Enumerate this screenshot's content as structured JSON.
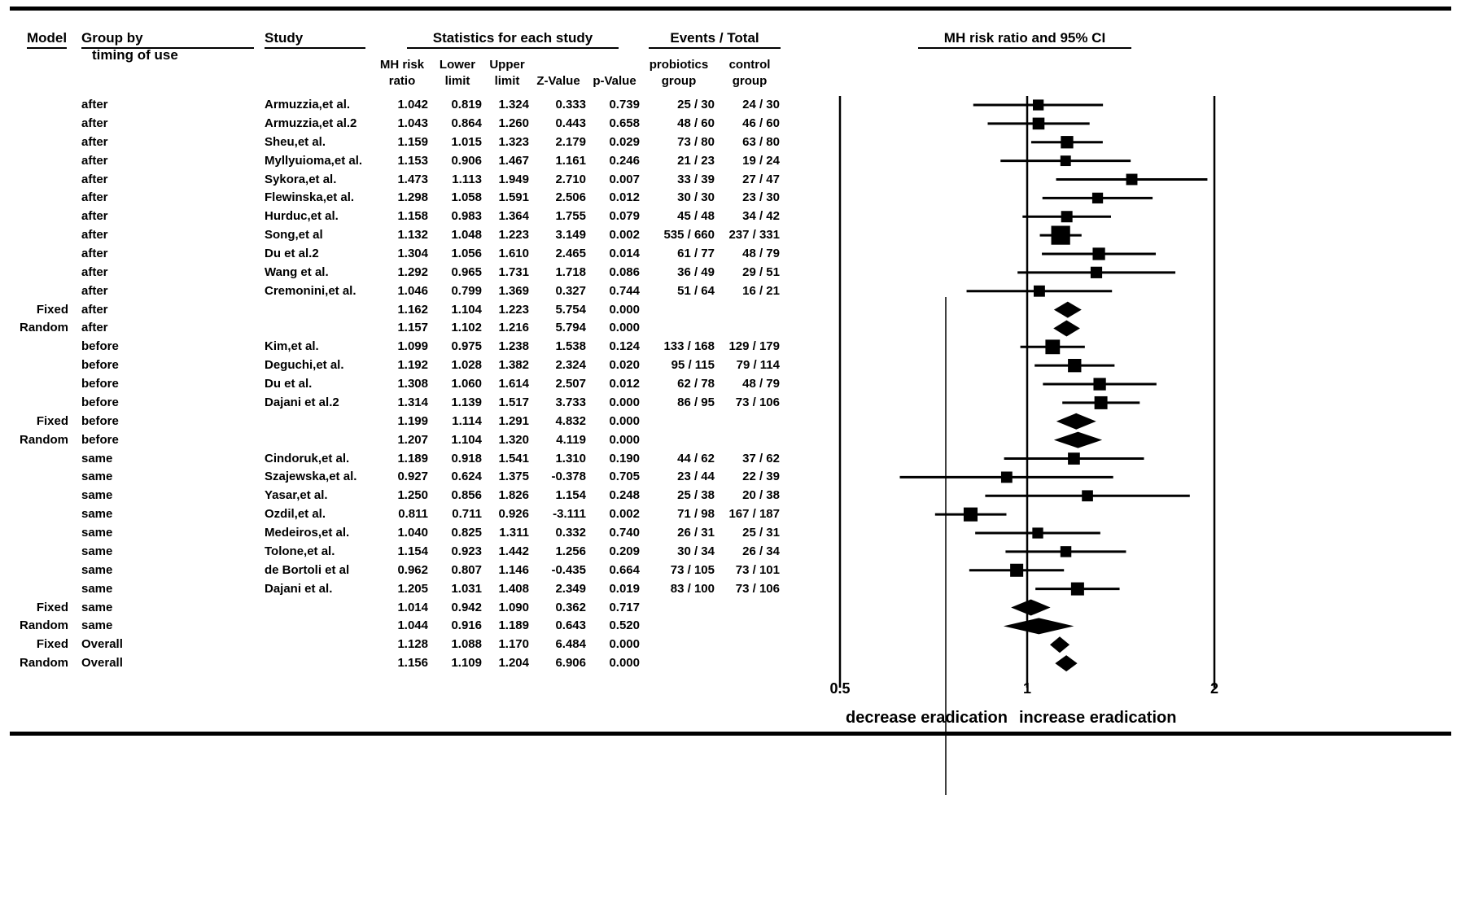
{
  "colors": {
    "ink": "#000000",
    "background": "#ffffff"
  },
  "table": {
    "headers": {
      "model": "Model",
      "group_by": "Group by",
      "group_by_sub": "timing of use",
      "study": "Study",
      "statistics": "Statistics for each study",
      "events": "Events / Total",
      "plot": "MH risk ratio and 95% CI"
    },
    "subheaders": {
      "rr1": "MH risk",
      "rr2": "ratio",
      "lower1": "Lower",
      "lower2": "limit",
      "upper1": "Upper",
      "upper2": "limit",
      "z2": "Z-Value",
      "p2": "p-Value",
      "prob1": "probiotics",
      "prob2": "group",
      "ctrl1": "control",
      "ctrl2": "group"
    }
  },
  "chart_data": {
    "type": "scatter",
    "subtype": "forest-plot-meta-analysis",
    "title": "MH risk ratio and 95% CI",
    "x_scale": "log",
    "xlim": [
      0.5,
      2
    ],
    "x_ticks": [
      "0.5",
      "1",
      "2"
    ],
    "reference_line_x": 1,
    "axis_label_left": "decrease eradication",
    "axis_label_right": "increase eradication",
    "rows": [
      {
        "kind": "study",
        "model": "",
        "group": "after",
        "study": "Armuzzia,et al.",
        "rr": "1.042",
        "lower": "0.819",
        "upper": "1.324",
        "z": "0.333",
        "p": "0.739",
        "probiotics": "25 / 30",
        "control": "24 / 30"
      },
      {
        "kind": "study",
        "model": "",
        "group": "after",
        "study": "Armuzzia,et al.2",
        "rr": "1.043",
        "lower": "0.864",
        "upper": "1.260",
        "z": "0.443",
        "p": "0.658",
        "probiotics": "48 / 60",
        "control": "46 / 60"
      },
      {
        "kind": "study",
        "model": "",
        "group": "after",
        "study": "Sheu,et al.",
        "rr": "1.159",
        "lower": "1.015",
        "upper": "1.323",
        "z": "2.179",
        "p": "0.029",
        "probiotics": "73 / 80",
        "control": "63 / 80"
      },
      {
        "kind": "study",
        "model": "",
        "group": "after",
        "study": "Myllyuioma,et al.",
        "rr": "1.153",
        "lower": "0.906",
        "upper": "1.467",
        "z": "1.161",
        "p": "0.246",
        "probiotics": "21 / 23",
        "control": "19 / 24"
      },
      {
        "kind": "study",
        "model": "",
        "group": "after",
        "study": "Sykora,et al.",
        "rr": "1.473",
        "lower": "1.113",
        "upper": "1.949",
        "z": "2.710",
        "p": "0.007",
        "probiotics": "33 / 39",
        "control": "27 / 47"
      },
      {
        "kind": "study",
        "model": "",
        "group": "after",
        "study": "Flewinska,et al.",
        "rr": "1.298",
        "lower": "1.058",
        "upper": "1.591",
        "z": "2.506",
        "p": "0.012",
        "probiotics": "30 / 30",
        "control": "23 / 30"
      },
      {
        "kind": "study",
        "model": "",
        "group": "after",
        "study": "Hurduc,et al.",
        "rr": "1.158",
        "lower": "0.983",
        "upper": "1.364",
        "z": "1.755",
        "p": "0.079",
        "probiotics": "45 / 48",
        "control": "34 / 42"
      },
      {
        "kind": "study",
        "model": "",
        "group": "after",
        "study": "Song,et al",
        "rr": "1.132",
        "lower": "1.048",
        "upper": "1.223",
        "z": "3.149",
        "p": "0.002",
        "probiotics": "535 / 660",
        "control": "237 / 331"
      },
      {
        "kind": "study",
        "model": "",
        "group": "after",
        "study": "Du et al.2",
        "rr": "1.304",
        "lower": "1.056",
        "upper": "1.610",
        "z": "2.465",
        "p": "0.014",
        "probiotics": "61 / 77",
        "control": "48 / 79"
      },
      {
        "kind": "study",
        "model": "",
        "group": "after",
        "study": "Wang et al.",
        "rr": "1.292",
        "lower": "0.965",
        "upper": "1.731",
        "z": "1.718",
        "p": "0.086",
        "probiotics": "36 / 49",
        "control": "29 / 51"
      },
      {
        "kind": "study",
        "model": "",
        "group": "after",
        "study": "Cremonini,et al.",
        "rr": "1.046",
        "lower": "0.799",
        "upper": "1.369",
        "z": "0.327",
        "p": "0.744",
        "probiotics": "51 / 64",
        "control": "16 / 21"
      },
      {
        "kind": "summary",
        "model": "Fixed",
        "group": "after",
        "study": "",
        "rr": "1.162",
        "lower": "1.104",
        "upper": "1.223",
        "z": "5.754",
        "p": "0.000",
        "probiotics": "",
        "control": ""
      },
      {
        "kind": "summary",
        "model": "Random",
        "group": "after",
        "study": "",
        "rr": "1.157",
        "lower": "1.102",
        "upper": "1.216",
        "z": "5.794",
        "p": "0.000",
        "probiotics": "",
        "control": ""
      },
      {
        "kind": "study",
        "model": "",
        "group": "before",
        "study": "Kim,et al.",
        "rr": "1.099",
        "lower": "0.975",
        "upper": "1.238",
        "z": "1.538",
        "p": "0.124",
        "probiotics": "133 / 168",
        "control": "129 / 179"
      },
      {
        "kind": "study",
        "model": "",
        "group": "before",
        "study": "Deguchi,et al.",
        "rr": "1.192",
        "lower": "1.028",
        "upper": "1.382",
        "z": "2.324",
        "p": "0.020",
        "probiotics": "95 / 115",
        "control": "79 / 114"
      },
      {
        "kind": "study",
        "model": "",
        "group": "before",
        "study": "Du et al.",
        "rr": "1.308",
        "lower": "1.060",
        "upper": "1.614",
        "z": "2.507",
        "p": "0.012",
        "probiotics": "62 / 78",
        "control": "48 / 79"
      },
      {
        "kind": "study",
        "model": "",
        "group": "before",
        "study": "Dajani et al.2",
        "rr": "1.314",
        "lower": "1.139",
        "upper": "1.517",
        "z": "3.733",
        "p": "0.000",
        "probiotics": "86 / 95",
        "control": "73 / 106"
      },
      {
        "kind": "summary",
        "model": "Fixed",
        "group": "before",
        "study": "",
        "rr": "1.199",
        "lower": "1.114",
        "upper": "1.291",
        "z": "4.832",
        "p": "0.000",
        "probiotics": "",
        "control": ""
      },
      {
        "kind": "summary",
        "model": "Random",
        "group": "before",
        "study": "",
        "rr": "1.207",
        "lower": "1.104",
        "upper": "1.320",
        "z": "4.119",
        "p": "0.000",
        "probiotics": "",
        "control": ""
      },
      {
        "kind": "study",
        "model": "",
        "group": "same",
        "study": "Cindoruk,et al.",
        "rr": "1.189",
        "lower": "0.918",
        "upper": "1.541",
        "z": "1.310",
        "p": "0.190",
        "probiotics": "44 / 62",
        "control": "37 / 62"
      },
      {
        "kind": "study",
        "model": "",
        "group": "same",
        "study": "Szajewska,et al.",
        "rr": "0.927",
        "lower": "0.624",
        "upper": "1.375",
        "z": "-0.378",
        "p": "0.705",
        "probiotics": "23 / 44",
        "control": "22 / 39"
      },
      {
        "kind": "study",
        "model": "",
        "group": "same",
        "study": "Yasar,et al.",
        "rr": "1.250",
        "lower": "0.856",
        "upper": "1.826",
        "z": "1.154",
        "p": "0.248",
        "probiotics": "25 / 38",
        "control": "20 / 38"
      },
      {
        "kind": "study",
        "model": "",
        "group": "same",
        "study": "Ozdil,et al.",
        "rr": "0.811",
        "lower": "0.711",
        "upper": "0.926",
        "z": "-3.111",
        "p": "0.002",
        "probiotics": "71 / 98",
        "control": "167 / 187"
      },
      {
        "kind": "study",
        "model": "",
        "group": "same",
        "study": "Medeiros,et al.",
        "rr": "1.040",
        "lower": "0.825",
        "upper": "1.311",
        "z": "0.332",
        "p": "0.740",
        "probiotics": "26 / 31",
        "control": "25 / 31"
      },
      {
        "kind": "study",
        "model": "",
        "group": "same",
        "study": "Tolone,et al.",
        "rr": "1.154",
        "lower": "0.923",
        "upper": "1.442",
        "z": "1.256",
        "p": "0.209",
        "probiotics": "30 / 34",
        "control": "26 / 34"
      },
      {
        "kind": "study",
        "model": "",
        "group": "same",
        "study": "de Bortoli et al",
        "rr": "0.962",
        "lower": "0.807",
        "upper": "1.146",
        "z": "-0.435",
        "p": "0.664",
        "probiotics": "73 / 105",
        "control": "73 / 101"
      },
      {
        "kind": "study",
        "model": "",
        "group": "same",
        "study": "Dajani et al.",
        "rr": "1.205",
        "lower": "1.031",
        "upper": "1.408",
        "z": "2.349",
        "p": "0.019",
        "probiotics": "83 / 100",
        "control": "73 / 106"
      },
      {
        "kind": "summary",
        "model": "Fixed",
        "group": "same",
        "study": "",
        "rr": "1.014",
        "lower": "0.942",
        "upper": "1.090",
        "z": "0.362",
        "p": "0.717",
        "probiotics": "",
        "control": ""
      },
      {
        "kind": "summary",
        "model": "Random",
        "group": "same",
        "study": "",
        "rr": "1.044",
        "lower": "0.916",
        "upper": "1.189",
        "z": "0.643",
        "p": "0.520",
        "probiotics": "",
        "control": ""
      },
      {
        "kind": "summary",
        "model": "Fixed",
        "group": "Overall",
        "study": "",
        "rr": "1.128",
        "lower": "1.088",
        "upper": "1.170",
        "z": "6.484",
        "p": "0.000",
        "probiotics": "",
        "control": ""
      },
      {
        "kind": "summary",
        "model": "Random",
        "group": "Overall",
        "study": "",
        "rr": "1.156",
        "lower": "1.109",
        "upper": "1.204",
        "z": "6.906",
        "p": "0.000",
        "probiotics": "",
        "control": ""
      }
    ]
  }
}
